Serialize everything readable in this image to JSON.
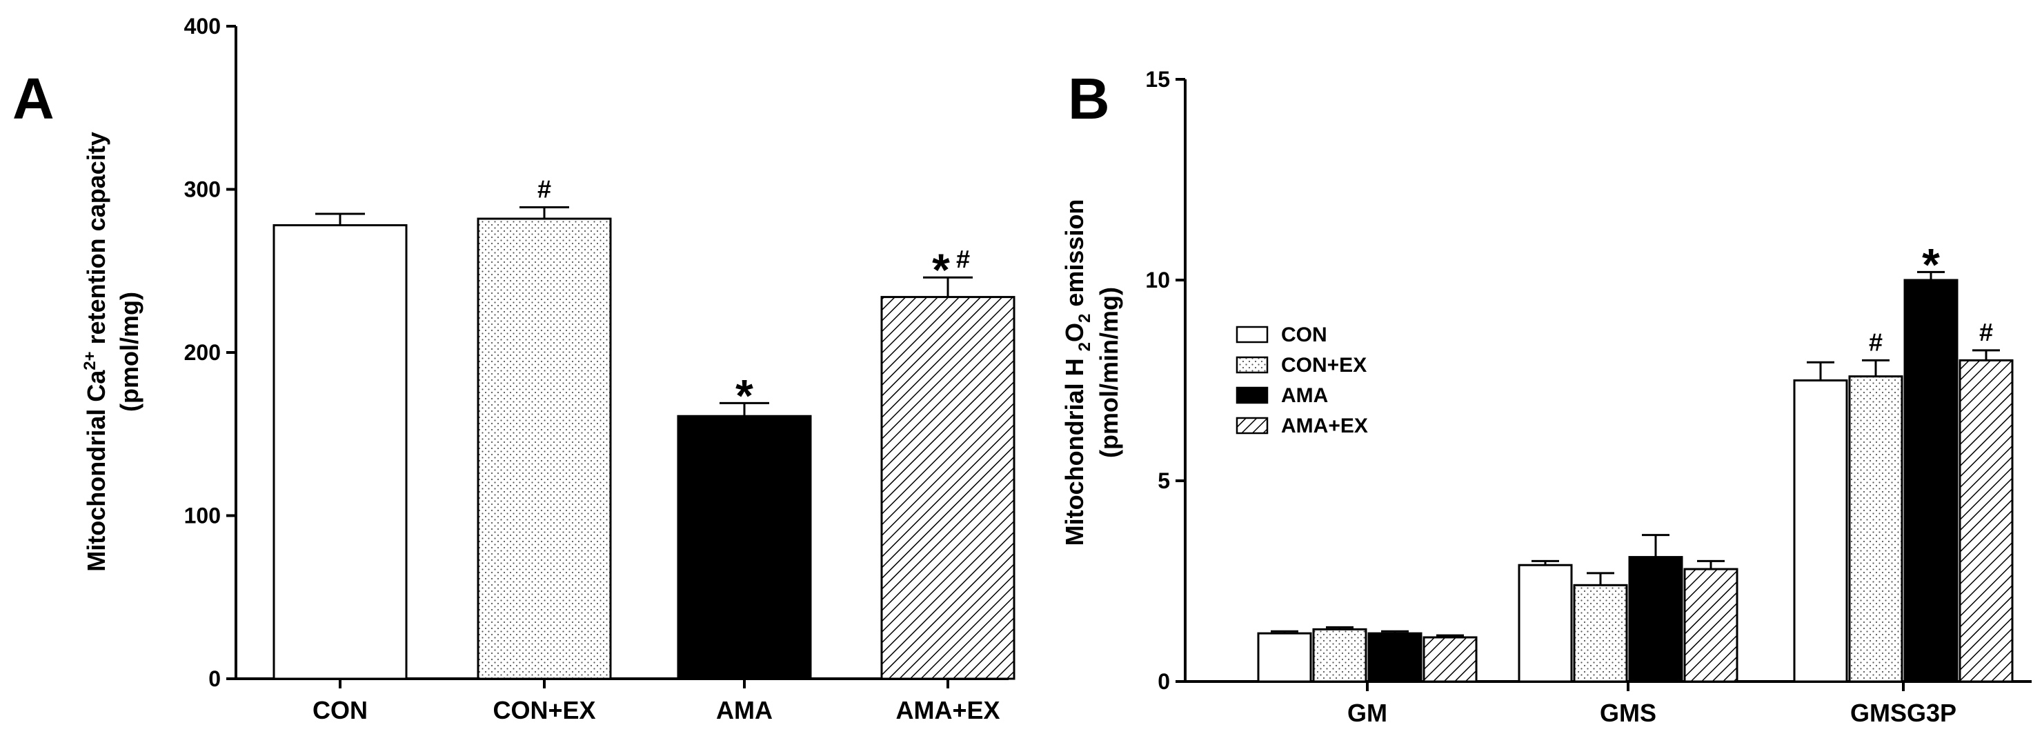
{
  "chart_data": [
    {
      "panel_label": "A",
      "type": "bar",
      "categories": [
        "CON",
        "CON+EX",
        "AMA",
        "AMA+EX"
      ],
      "values": [
        278,
        282,
        161,
        234
      ],
      "errors": [
        7,
        7,
        8,
        12
      ],
      "fills": [
        "open",
        "dotted",
        "solid",
        "hatched"
      ],
      "annotations": [
        "",
        "#",
        "*",
        "*#"
      ],
      "ylabel_main": "Mitochondrial Ca",
      "ylabel_sup": "2+",
      "ylabel_rest": " retention capacity",
      "ylabel_unit": "(pmol/mg)",
      "ylim": [
        0,
        400
      ],
      "yticks": [
        0,
        100,
        200,
        300,
        400
      ],
      "ytick_labels": [
        "0",
        "100",
        "200",
        "300",
        "400"
      ],
      "grid": false
    },
    {
      "panel_label": "B",
      "type": "bar",
      "categories": [
        "GM",
        "GMS",
        "GMSG3P"
      ],
      "series": [
        {
          "name": "CON",
          "fill": "open",
          "values": [
            1.2,
            2.9,
            7.5
          ],
          "errors": [
            0.05,
            0.1,
            0.45
          ],
          "annotations": [
            "",
            "",
            ""
          ]
        },
        {
          "name": "CON+EX",
          "fill": "dotted",
          "values": [
            1.3,
            2.4,
            7.6
          ],
          "errors": [
            0.05,
            0.3,
            0.4
          ],
          "annotations": [
            "",
            "",
            "#"
          ]
        },
        {
          "name": "AMA",
          "fill": "solid",
          "values": [
            1.2,
            3.1,
            10.0
          ],
          "errors": [
            0.05,
            0.55,
            0.2
          ],
          "annotations": [
            "",
            "",
            "*"
          ]
        },
        {
          "name": "AMA+EX",
          "fill": "hatched",
          "values": [
            1.1,
            2.8,
            8.0
          ],
          "errors": [
            0.05,
            0.2,
            0.25
          ],
          "annotations": [
            "",
            "",
            "#"
          ]
        }
      ],
      "ylabel_line1_a": "Mitochondrial H ",
      "ylabel_line1_b": "2",
      "ylabel_line1_c": "O",
      "ylabel_line1_d": "2",
      "ylabel_line1_e": " emission",
      "ylabel_unit": "(pmol/min/mg)",
      "ylim": [
        0,
        15
      ],
      "yticks": [
        0,
        5,
        10,
        15
      ],
      "ytick_labels": [
        "0",
        "5",
        "10",
        "15"
      ],
      "legend_position": "upper-left",
      "grid": false
    }
  ]
}
